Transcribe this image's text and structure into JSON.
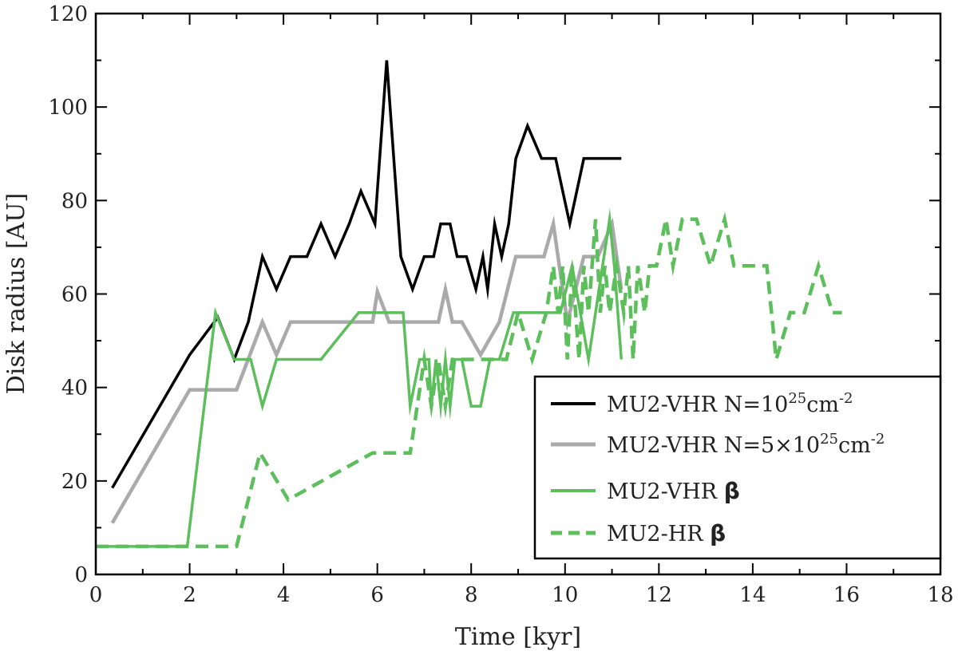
{
  "chart_data": {
    "type": "line",
    "title": "",
    "xlabel": "Time [kyr]",
    "ylabel": "Disk radius [AU]",
    "xlim": [
      0,
      18
    ],
    "ylim": [
      0,
      120
    ],
    "xticks": [
      "0",
      "2",
      "4",
      "6",
      "8",
      "10",
      "12",
      "14",
      "16",
      "18"
    ],
    "yticks": [
      "0",
      "20",
      "40",
      "60",
      "80",
      "100",
      "120"
    ],
    "grid": false,
    "legend_position": "lower-right",
    "colors": {
      "black": "#000000",
      "gray": "#aaaaaa",
      "green": "#5cbf5c"
    },
    "series": [
      {
        "id": "s1",
        "legend_main": "MU2-VHR N=10",
        "legend_sup": "25",
        "legend_tail": "cm",
        "legend_tail_sup": "-2",
        "color": "#000000",
        "dash": false,
        "x": [
          0.35,
          2.0,
          2.6,
          2.95,
          3.25,
          3.55,
          3.85,
          4.15,
          4.5,
          4.8,
          5.1,
          5.4,
          5.65,
          5.95,
          6.2,
          6.5,
          6.75,
          7.0,
          7.2,
          7.35,
          7.55,
          7.7,
          7.9,
          8.1,
          8.25,
          8.35,
          8.5,
          8.65,
          8.8,
          8.95,
          9.2,
          9.5,
          9.8,
          10.1,
          10.4,
          10.7,
          11.0,
          11.2
        ],
        "y": [
          18.5,
          47,
          55,
          46,
          54,
          68,
          61,
          68,
          68,
          75,
          68,
          75,
          82,
          75,
          110,
          68,
          61,
          68,
          68,
          75,
          75,
          68,
          68,
          61,
          68,
          61,
          75,
          68,
          75,
          89,
          96,
          89,
          89,
          75,
          89,
          89,
          89,
          89
        ]
      },
      {
        "id": "s2",
        "legend_main": "MU2-VHR N=5×10",
        "legend_sup": "25",
        "legend_tail": "cm",
        "legend_tail_sup": "-2",
        "color": "#aaaaaa",
        "dash": false,
        "x": [
          0.35,
          2.0,
          3.0,
          3.55,
          3.85,
          4.15,
          5.9,
          6.0,
          6.25,
          7.3,
          7.45,
          7.6,
          7.8,
          8.2,
          8.6,
          8.95,
          9.55,
          9.75,
          10.05,
          10.4,
          10.7,
          11.0,
          11.2
        ],
        "y": [
          11,
          39.5,
          39.5,
          54,
          47,
          54,
          54,
          60.5,
          54,
          54,
          61,
          54,
          54,
          47,
          54,
          68,
          68,
          75,
          54,
          68,
          68,
          75,
          61
        ]
      },
      {
        "id": "s3",
        "legend_main": "MU2-VHR ",
        "legend_sym": "β",
        "color": "#5cbf5c",
        "dash": false,
        "x": [
          0.0,
          1.95,
          2.55,
          2.95,
          3.3,
          3.55,
          3.85,
          4.8,
          5.6,
          6.55,
          6.7,
          6.9,
          7.1,
          7.15,
          7.25,
          7.35,
          7.45,
          7.55,
          7.65,
          7.8,
          8.0,
          8.2,
          8.4,
          8.6,
          8.9,
          9.2,
          9.6,
          9.9,
          10.15,
          10.5,
          10.8,
          10.95,
          11.05,
          11.2
        ],
        "y": [
          6,
          6,
          56,
          46,
          46,
          36,
          46,
          46,
          56,
          56,
          36,
          46,
          46,
          36,
          46,
          36,
          46,
          36,
          46,
          46,
          36,
          36,
          46,
          46,
          56,
          56,
          56,
          56,
          66,
          46,
          66,
          76,
          66,
          46
        ]
      },
      {
        "id": "s4",
        "legend_main": "MU2-HR ",
        "legend_sym": "β",
        "color": "#5cbf5c",
        "dash": true,
        "x": [
          0.0,
          3.0,
          3.5,
          4.1,
          5.9,
          6.7,
          6.85,
          7.0,
          7.15,
          7.3,
          7.45,
          7.6,
          7.75,
          8.0,
          8.25,
          8.5,
          8.75,
          9.0,
          9.3,
          9.6,
          9.75,
          9.85,
          9.95,
          10.05,
          10.15,
          10.3,
          10.4,
          10.5,
          10.65,
          10.75,
          10.85,
          10.95,
          11.1,
          11.25,
          11.35,
          11.45,
          11.55,
          11.7,
          11.8,
          11.95,
          12.15,
          12.3,
          12.5,
          12.8,
          13.1,
          13.4,
          13.6,
          13.9,
          14.3,
          14.5,
          14.8,
          15.1,
          15.4,
          15.7,
          15.9
        ],
        "y": [
          6,
          6,
          26,
          16,
          26,
          26,
          36,
          46,
          36,
          46,
          36,
          46,
          46,
          46,
          46,
          46,
          46,
          56,
          46,
          56,
          66,
          56,
          66,
          46,
          66,
          46,
          66,
          56,
          76,
          56,
          66,
          56,
          66,
          56,
          66,
          46,
          66,
          56,
          66,
          66,
          76,
          66,
          76,
          76,
          66,
          76,
          66,
          66,
          66,
          46,
          56,
          56,
          66,
          56,
          56
        ]
      }
    ]
  }
}
